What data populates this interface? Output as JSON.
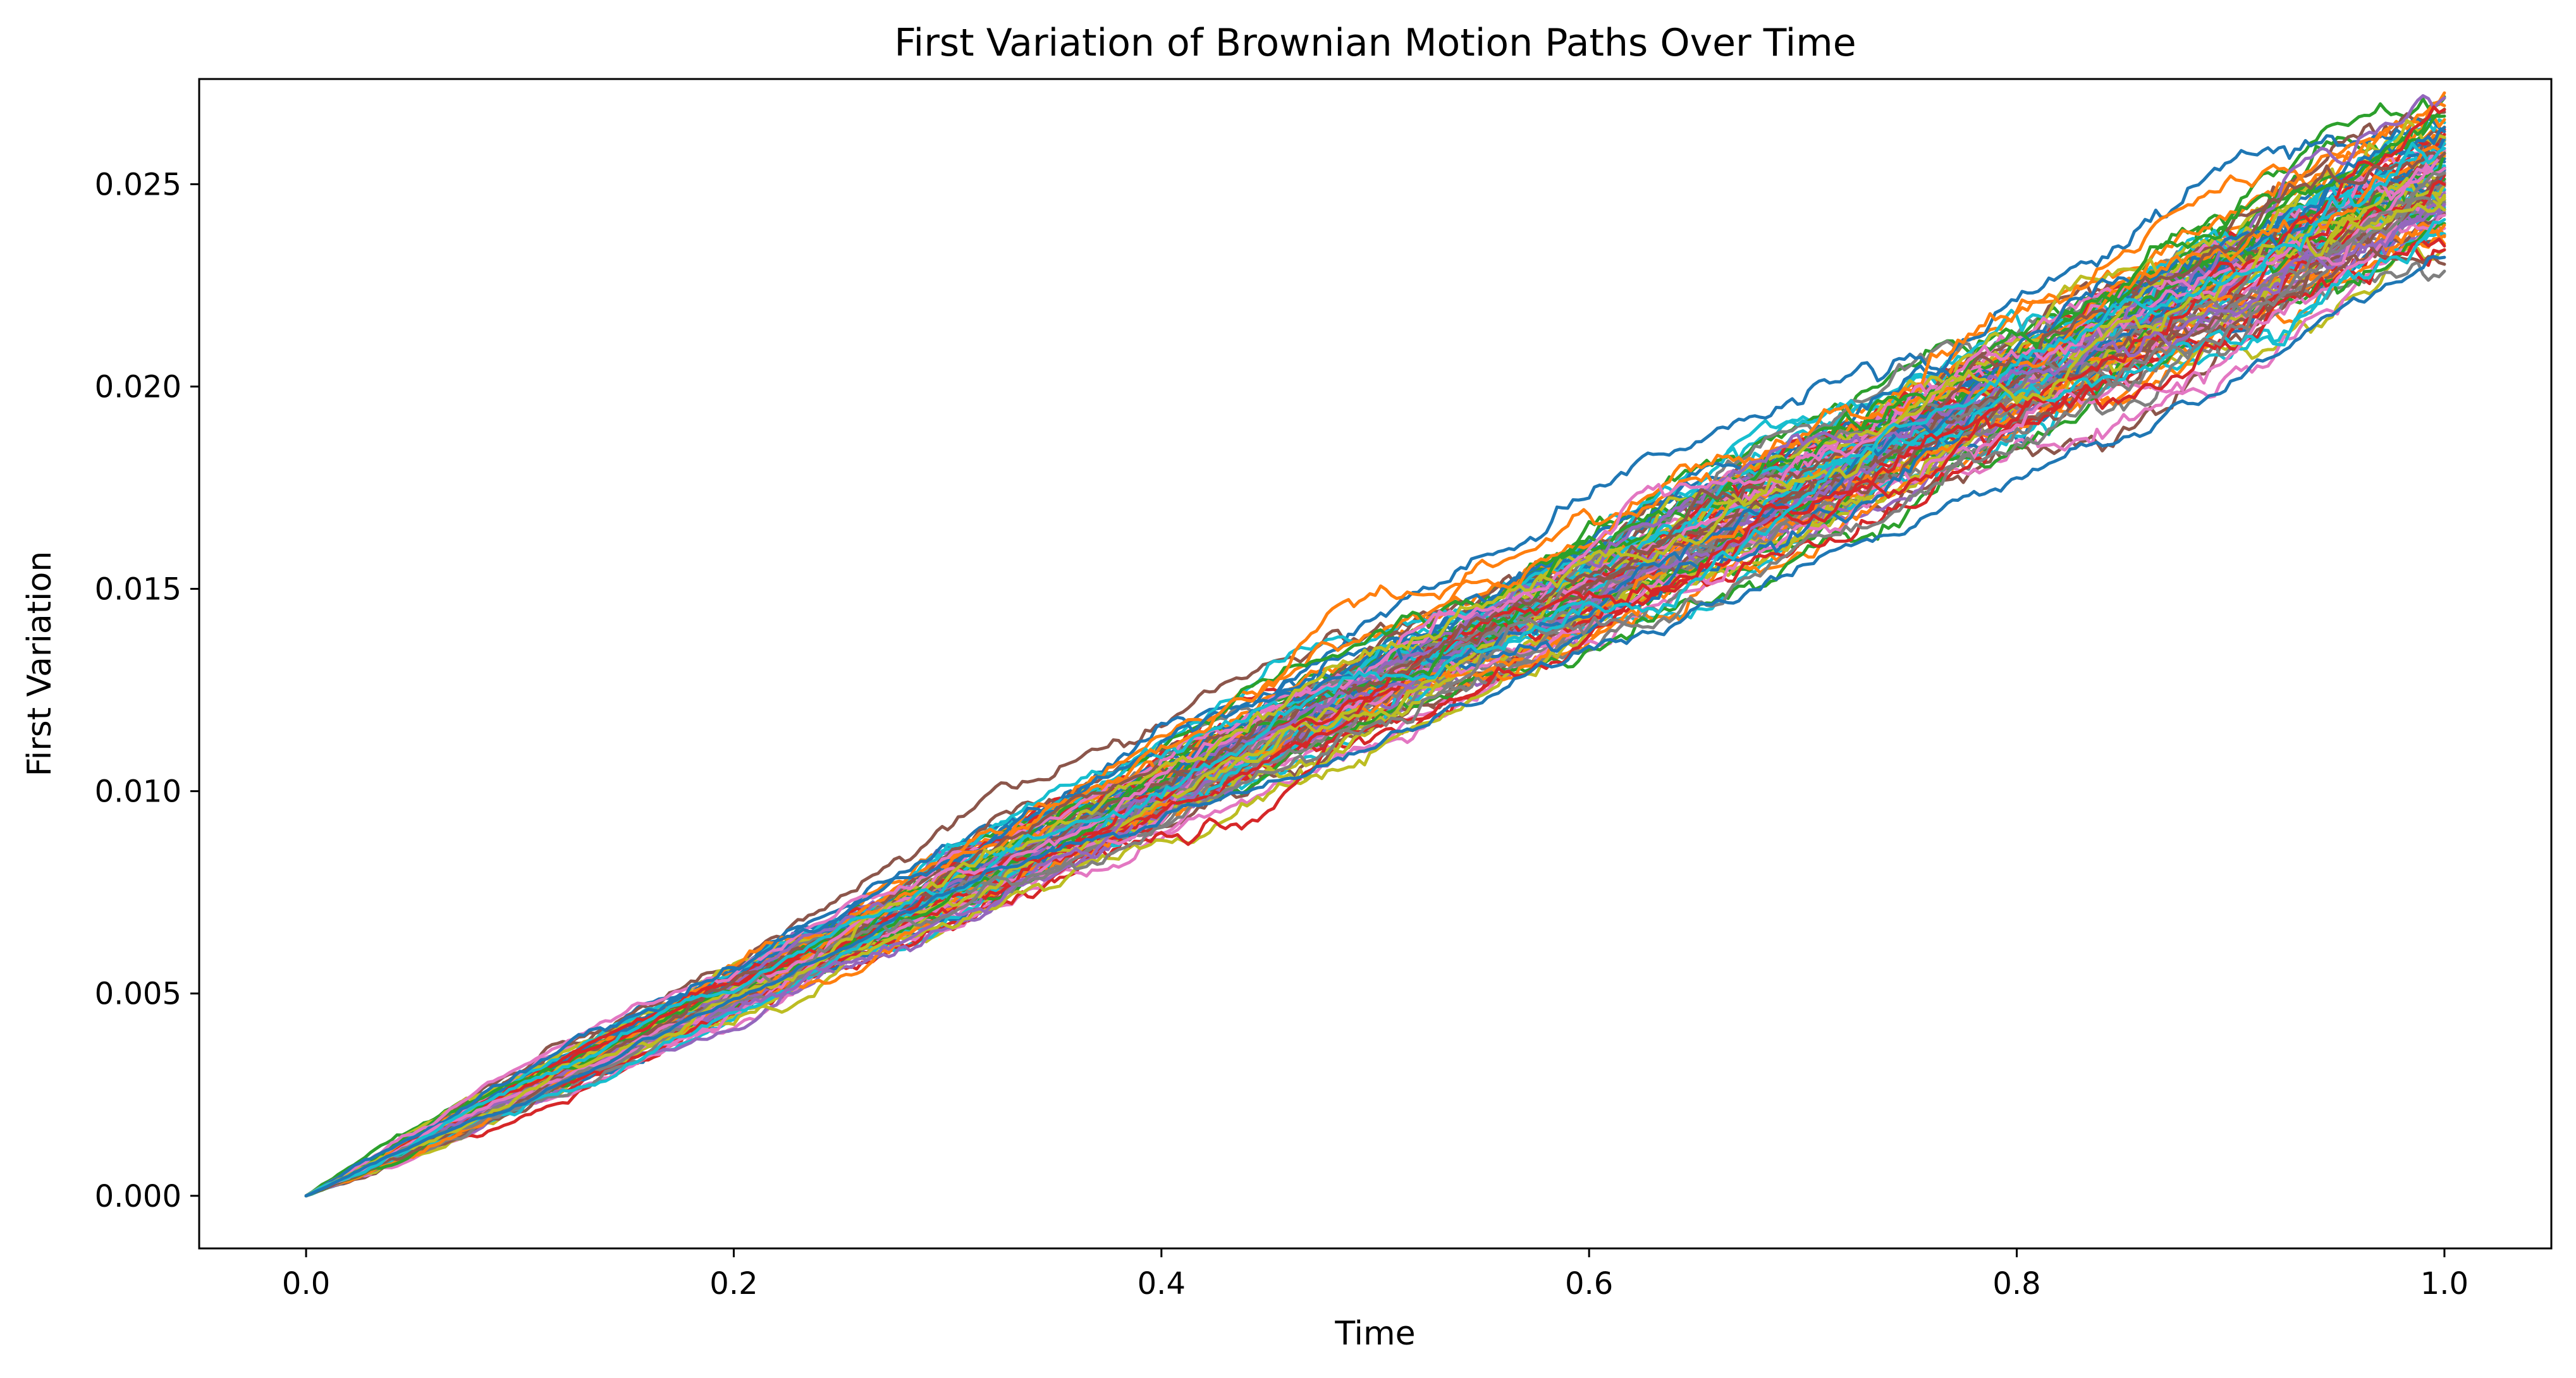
{
  "chart_data": {
    "type": "line",
    "title": "First Variation of Brownian Motion Paths Over Time",
    "xlabel": "Time",
    "ylabel": "First Variation",
    "xlim": [
      -0.05,
      1.05
    ],
    "ylim": [
      -0.0013,
      0.0276
    ],
    "xticks": [
      0.0,
      0.2,
      0.4,
      0.6,
      0.8,
      1.0
    ],
    "xtick_labels": [
      "0.0",
      "0.2",
      "0.4",
      "0.6",
      "0.8",
      "1.0"
    ],
    "yticks": [
      0.0,
      0.005,
      0.01,
      0.015,
      0.02,
      0.025
    ],
    "ytick_labels": [
      "0.000",
      "0.005",
      "0.010",
      "0.015",
      "0.020",
      "0.025"
    ],
    "grid": false,
    "legend": "none",
    "colors": [
      "#1f77b4",
      "#ff7f0e",
      "#2ca02c",
      "#d62728",
      "#9467bd",
      "#8c564b",
      "#e377c2",
      "#7f7f7f",
      "#bcbd22",
      "#17becf"
    ],
    "series_count": 100,
    "x": [
      0.0,
      0.1,
      0.2,
      0.3,
      0.4,
      0.5,
      0.6,
      0.7,
      0.8,
      0.9,
      1.0
    ],
    "series_summary": {
      "mean": [
        0.0,
        0.0025,
        0.005,
        0.0075,
        0.01,
        0.0126,
        0.0151,
        0.0176,
        0.0202,
        0.0227,
        0.0253
      ],
      "upper_envelope": [
        0.0,
        0.0029,
        0.0057,
        0.0085,
        0.011,
        0.0136,
        0.0162,
        0.0187,
        0.0212,
        0.0237,
        0.0263
      ],
      "lower_envelope": [
        0.0,
        0.0021,
        0.0044,
        0.0067,
        0.0091,
        0.0114,
        0.0138,
        0.0162,
        0.0187,
        0.0211,
        0.0235
      ]
    },
    "highlighted_series": {
      "name": "",
      "values": [
        0.0,
        0.0024,
        0.0048,
        0.0072,
        0.0092,
        0.0113,
        0.0134,
        0.0156,
        0.0178,
        0.0205,
        0.0234
      ]
    }
  }
}
